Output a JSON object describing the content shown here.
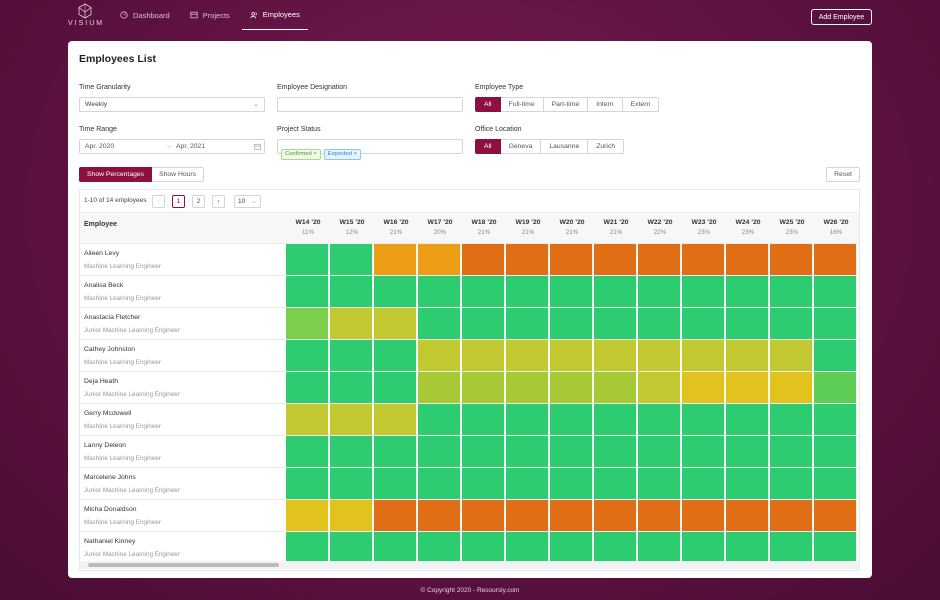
{
  "app": {
    "logo_text": "VISIUM"
  },
  "nav": {
    "items": [
      {
        "label": "Dashboard",
        "icon": "gauge-icon"
      },
      {
        "label": "Projects",
        "icon": "board-icon"
      },
      {
        "label": "Employees",
        "icon": "users-icon"
      }
    ],
    "active": "Employees",
    "add_button": "Add Employee"
  },
  "page": {
    "title": "Employees List"
  },
  "filters": {
    "granularity": {
      "label": "Time Granularity",
      "value": "Weekly"
    },
    "designation": {
      "label": "Employee Designation",
      "value": ""
    },
    "employee_type": {
      "label": "Employee Type",
      "options": [
        "All",
        "Full-time",
        "Part-time",
        "Intern",
        "Extern"
      ],
      "selected": "All"
    },
    "time_range": {
      "label": "Time Range",
      "start": "Apr. 2020",
      "end": "Apr. 2021"
    },
    "project_status": {
      "label": "Project Status",
      "tags": [
        "Confirmed",
        "Expected"
      ]
    },
    "office_location": {
      "label": "Office Location",
      "options": [
        "All",
        "Geneva",
        "Lausanne",
        "Zurich"
      ],
      "selected": "All"
    }
  },
  "view_toggle": {
    "percentages": "Show Percentages",
    "hours": "Show Hours",
    "selected": "Show Percentages"
  },
  "reset_label": "Reset",
  "pagination": {
    "info": "1-10 of 14 employees",
    "prev": "‹",
    "next": "›",
    "pages": [
      "1",
      "2"
    ],
    "current": "1",
    "page_size": "10"
  },
  "table": {
    "employee_header": "Employee",
    "weeks": [
      {
        "name": "W14 '20",
        "pct": "11%"
      },
      {
        "name": "W15 '20",
        "pct": "12%"
      },
      {
        "name": "W16 '20",
        "pct": "21%"
      },
      {
        "name": "W17 '20",
        "pct": "20%"
      },
      {
        "name": "W18 '20",
        "pct": "21%"
      },
      {
        "name": "W19 '20",
        "pct": "21%"
      },
      {
        "name": "W20 '20",
        "pct": "21%"
      },
      {
        "name": "W21 '20",
        "pct": "21%"
      },
      {
        "name": "W22 '20",
        "pct": "22%"
      },
      {
        "name": "W23 '20",
        "pct": "23%"
      },
      {
        "name": "W24 '20",
        "pct": "23%"
      },
      {
        "name": "W25 '20",
        "pct": "23%"
      },
      {
        "name": "W26 '20",
        "pct": "16%"
      }
    ],
    "palette": {
      "g": "#2ecc71",
      "l": "#7dce4c",
      "m": "#5dcd55",
      "y": "#c2c82f",
      "a": "#a7c935",
      "z": "#e2c21d",
      "o": "#ec9e17",
      "r": "#df6e17"
    },
    "rows": [
      {
        "name": "Aileen Levy",
        "role": "Machine Learning Engineer",
        "cells": [
          "g",
          "g",
          "o",
          "o",
          "r",
          "r",
          "r",
          "r",
          "r",
          "r",
          "r",
          "r",
          "r"
        ]
      },
      {
        "name": "Analisa Beck",
        "role": "Machine Learning Engineer",
        "cells": [
          "g",
          "g",
          "g",
          "g",
          "g",
          "g",
          "g",
          "g",
          "g",
          "g",
          "g",
          "g",
          "g"
        ]
      },
      {
        "name": "Anastacia Fletcher",
        "role": "Junior Machine Learning Engineer",
        "cells": [
          "l",
          "y",
          "y",
          "g",
          "g",
          "g",
          "g",
          "g",
          "g",
          "g",
          "g",
          "g",
          "g"
        ]
      },
      {
        "name": "Cathey Johnston",
        "role": "Machine Learning Engineer",
        "cells": [
          "g",
          "g",
          "g",
          "y",
          "y",
          "y",
          "y",
          "y",
          "y",
          "y",
          "y",
          "y",
          "g"
        ]
      },
      {
        "name": "Deja Heath",
        "role": "Junior Machine Learning Engineer",
        "cells": [
          "g",
          "g",
          "g",
          "a",
          "a",
          "a",
          "a",
          "a",
          "y",
          "z",
          "z",
          "z",
          "m"
        ]
      },
      {
        "name": "Gerry Mcdowell",
        "role": "Machine Learning Engineer",
        "cells": [
          "y",
          "y",
          "y",
          "g",
          "g",
          "g",
          "g",
          "g",
          "g",
          "g",
          "g",
          "g",
          "g"
        ]
      },
      {
        "name": "Lanny Deleon",
        "role": "Machine Learning Engineer",
        "cells": [
          "g",
          "g",
          "g",
          "g",
          "g",
          "g",
          "g",
          "g",
          "g",
          "g",
          "g",
          "g",
          "g"
        ]
      },
      {
        "name": "Marcelene Johns",
        "role": "Junior Machine Learning Engineer",
        "cells": [
          "g",
          "g",
          "g",
          "g",
          "g",
          "g",
          "g",
          "g",
          "g",
          "g",
          "g",
          "g",
          "g"
        ]
      },
      {
        "name": "Micha Donaldson",
        "role": "Machine Learning Engineer",
        "cells": [
          "z",
          "z",
          "r",
          "r",
          "r",
          "r",
          "r",
          "r",
          "r",
          "r",
          "r",
          "r",
          "r"
        ]
      },
      {
        "name": "Nathaniel Kinney",
        "role": "Junior Machine Learning Engineer",
        "cells": [
          "g",
          "g",
          "g",
          "g",
          "g",
          "g",
          "g",
          "g",
          "g",
          "g",
          "g",
          "g",
          "g"
        ]
      }
    ]
  },
  "footer": "© Copyright 2020 - Resoursly.com"
}
